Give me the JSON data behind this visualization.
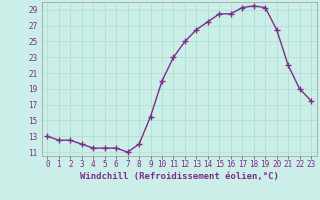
{
  "hours": [
    0,
    1,
    2,
    3,
    4,
    5,
    6,
    7,
    8,
    9,
    10,
    11,
    12,
    13,
    14,
    15,
    16,
    17,
    18,
    19,
    20,
    21,
    22,
    23
  ],
  "temps": [
    13,
    12.5,
    12.5,
    12,
    11.5,
    11.5,
    11.5,
    11,
    12,
    15.5,
    20,
    23,
    25,
    26.5,
    27.5,
    28.5,
    28.5,
    29.3,
    29.5,
    29.3,
    26.5,
    22,
    19,
    17.5
  ],
  "line_color": "#7b2d8b",
  "marker": "+",
  "marker_size": 5,
  "bg_color": "#cceee8",
  "grid_color": "#aaddcc",
  "xlabel": "Windchill (Refroidissement éolien,°C)",
  "xlim": [
    -0.5,
    23.5
  ],
  "ylim": [
    10.5,
    30.0
  ],
  "yticks": [
    11,
    13,
    15,
    17,
    19,
    21,
    23,
    25,
    27,
    29
  ],
  "xticks": [
    0,
    1,
    2,
    3,
    4,
    5,
    6,
    7,
    8,
    9,
    10,
    11,
    12,
    13,
    14,
    15,
    16,
    17,
    18,
    19,
    20,
    21,
    22,
    23
  ],
  "tick_color": "#7b2d8b",
  "tick_fontsize": 5.5,
  "xlabel_fontsize": 6.5,
  "spine_color": "#999999"
}
